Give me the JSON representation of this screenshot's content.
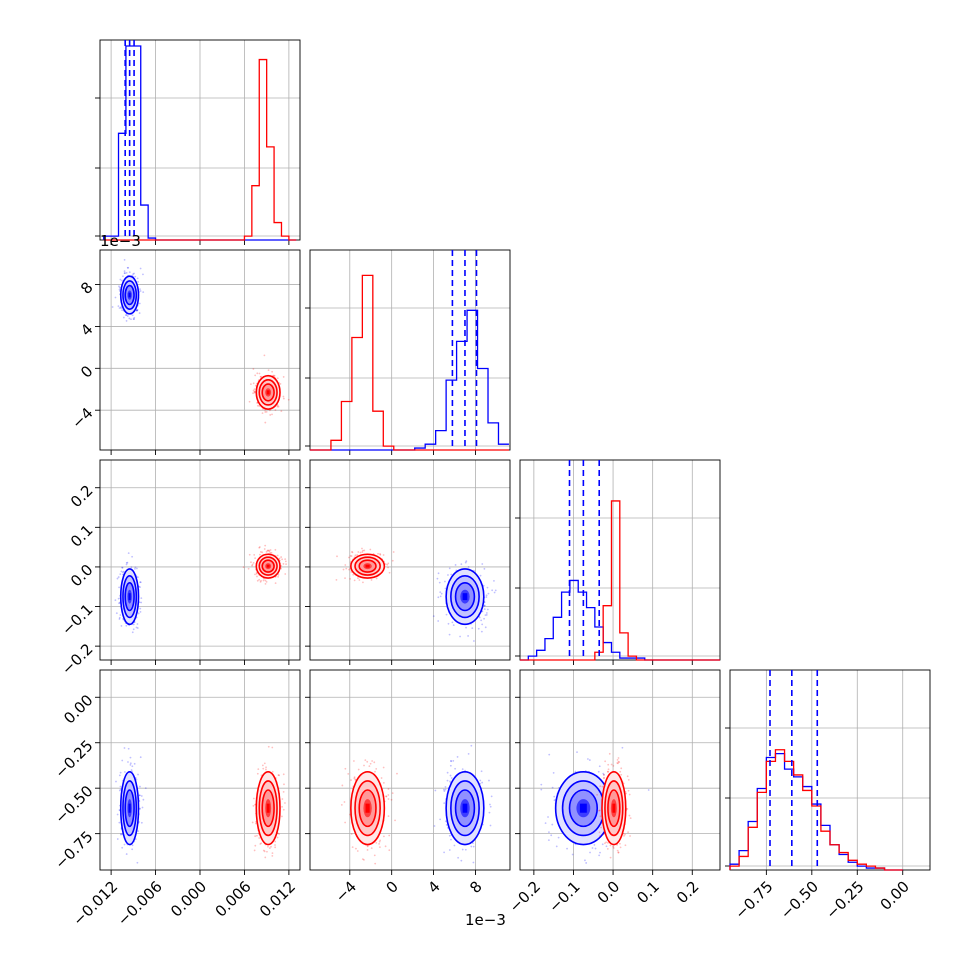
{
  "chart_data": {
    "type": "scatter",
    "title": "",
    "plot_kind": "corner plot",
    "grid": true,
    "series": [
      {
        "color": "#0000ff",
        "mean": [
          -0.0095,
          0.007,
          -0.075,
          -0.61
        ],
        "sd": [
          0.0006,
          0.0009,
          0.035,
          0.1
        ]
      },
      {
        "color": "#ff0000",
        "mean": [
          0.0092,
          -0.0023,
          0.002,
          -0.61
        ],
        "sd": [
          0.0008,
          0.0008,
          0.015,
          0.1
        ]
      }
    ],
    "quantile_lines": {
      "color": "#0000ff",
      "style": "dashed",
      "params": [
        [
          -0.0101,
          -0.0095,
          -0.0089
        ],
        [
          0.0058,
          0.007,
          0.0081
        ],
        [
          -0.11,
          -0.075,
          -0.035
        ],
        [
          -0.73,
          -0.61,
          -0.47
        ]
      ]
    },
    "axes": [
      {
        "range": [
          -0.0135,
          0.0135
        ],
        "ticks": [
          -0.012,
          -0.006,
          0.0,
          0.006,
          0.012
        ],
        "tick_labels": [
          "−0.012",
          "−0.006",
          "0.000",
          "0.006",
          "0.012"
        ]
      },
      {
        "range": [
          -0.0078,
          0.0113
        ],
        "ticks": [
          -0.004,
          0.0,
          0.004,
          0.008
        ],
        "tick_labels": [
          "−4",
          "0",
          "4",
          "8"
        ],
        "offset_label": "1e−3"
      },
      {
        "range": [
          -0.235,
          0.27
        ],
        "ticks": [
          -0.2,
          -0.1,
          0.0,
          0.1,
          0.2
        ],
        "tick_labels": [
          "−0.2",
          "−0.1",
          "0.0",
          "0.1",
          "0.2"
        ]
      },
      {
        "range": [
          -0.95,
          0.15
        ],
        "ticks": [
          -0.75,
          -0.5,
          -0.25,
          0.0
        ],
        "tick_labels": [
          "−0.75",
          "−0.50",
          "−0.25",
          "0.00"
        ]
      }
    ],
    "histograms": [
      {
        "bins": [
          -0.013,
          -0.012,
          -0.011,
          -0.01,
          -0.009,
          -0.008,
          -0.007,
          -0.006,
          -0.005,
          -0.004,
          -0.003,
          -0.002,
          -0.001,
          0.0,
          0.001,
          0.002,
          0.003,
          0.004,
          0.005,
          0.006,
          0.007,
          0.008,
          0.009,
          0.01,
          0.011,
          0.012,
          0.013
        ],
        "series": [
          {
            "name": "blue",
            "values": [
              0.02,
              0.02,
              0.55,
              1.0,
              1.0,
              0.18,
              0.01,
              0.0,
              0.0,
              0.0,
              0.0,
              0.0,
              0.0,
              0.0,
              0.0,
              0.0,
              0.0,
              0.0,
              0.0,
              0.0,
              0.0,
              0.0,
              0.0,
              0.0,
              0.0,
              0.0
            ]
          },
          {
            "name": "red",
            "values": [
              0,
              0,
              0,
              0,
              0,
              0,
              0,
              0,
              0,
              0,
              0,
              0,
              0,
              0,
              0,
              0,
              0,
              0,
              0,
              0.02,
              0.28,
              0.93,
              0.48,
              0.09,
              0.02,
              0.0
            ]
          }
        ]
      },
      {
        "bins": [
          -0.0078,
          -0.0068,
          -0.0058,
          -0.0048,
          -0.0038,
          -0.0028,
          -0.0018,
          -0.0008,
          0.0002,
          0.0012,
          0.0022,
          0.0032,
          0.0042,
          0.0052,
          0.0062,
          0.0072,
          0.0082,
          0.0092,
          0.0102,
          0.0112
        ],
        "series": [
          {
            "name": "blue",
            "values": [
              0,
              0,
              0,
              0,
              0,
              0,
              0,
              0,
              0,
              0,
              0.01,
              0.03,
              0.1,
              0.36,
              0.56,
              0.72,
              0.42,
              0.14,
              0.03
            ]
          },
          {
            "name": "red",
            "values": [
              0,
              0,
              0.05,
              0.25,
              0.58,
              0.9,
              0.2,
              0.02,
              0,
              0,
              0,
              0,
              0,
              0,
              0,
              0,
              0,
              0,
              0
            ]
          }
        ]
      },
      {
        "bins": [
          -0.235,
          -0.214,
          -0.193,
          -0.172,
          -0.151,
          -0.13,
          -0.109,
          -0.088,
          -0.067,
          -0.046,
          -0.025,
          -0.004,
          0.017,
          0.038,
          0.059,
          0.08,
          0.101,
          0.122,
          0.143,
          0.164,
          0.185,
          0.206,
          0.227,
          0.248,
          0.27
        ],
        "series": [
          {
            "name": "blue",
            "values": [
              0.0,
              0.02,
              0.05,
              0.11,
              0.22,
              0.35,
              0.41,
              0.35,
              0.27,
              0.17,
              0.09,
              0.04,
              0.01,
              0.01,
              0.01,
              0,
              0,
              0,
              0,
              0,
              0,
              0,
              0,
              0
            ]
          },
          {
            "name": "red",
            "values": [
              0,
              0,
              0,
              0,
              0,
              0,
              0,
              0,
              0,
              0.04,
              0.28,
              0.82,
              0.14,
              0.02,
              0,
              0,
              0,
              0,
              0,
              0,
              0,
              0,
              0,
              0
            ]
          }
        ]
      },
      {
        "bins": [
          -0.95,
          -0.9,
          -0.85,
          -0.8,
          -0.75,
          -0.7,
          -0.65,
          -0.6,
          -0.55,
          -0.5,
          -0.45,
          -0.4,
          -0.35,
          -0.3,
          -0.25,
          -0.2,
          -0.15,
          -0.1,
          -0.05,
          0.0
        ],
        "series": [
          {
            "name": "blue",
            "values": [
              0.03,
              0.1,
              0.25,
              0.42,
              0.58,
              0.6,
              0.52,
              0.48,
              0.43,
              0.34,
              0.23,
              0.13,
              0.08,
              0.04,
              0.02,
              0.01,
              0.01,
              0.0,
              0.0
            ]
          },
          {
            "name": "red",
            "values": [
              0.02,
              0.07,
              0.22,
              0.4,
              0.56,
              0.62,
              0.56,
              0.49,
              0.41,
              0.33,
              0.2,
              0.13,
              0.09,
              0.05,
              0.03,
              0.02,
              0.01,
              0.0,
              0.0
            ]
          }
        ]
      }
    ],
    "bottom_offset_label": "1e−3",
    "left_offset_label": "1e−3"
  }
}
